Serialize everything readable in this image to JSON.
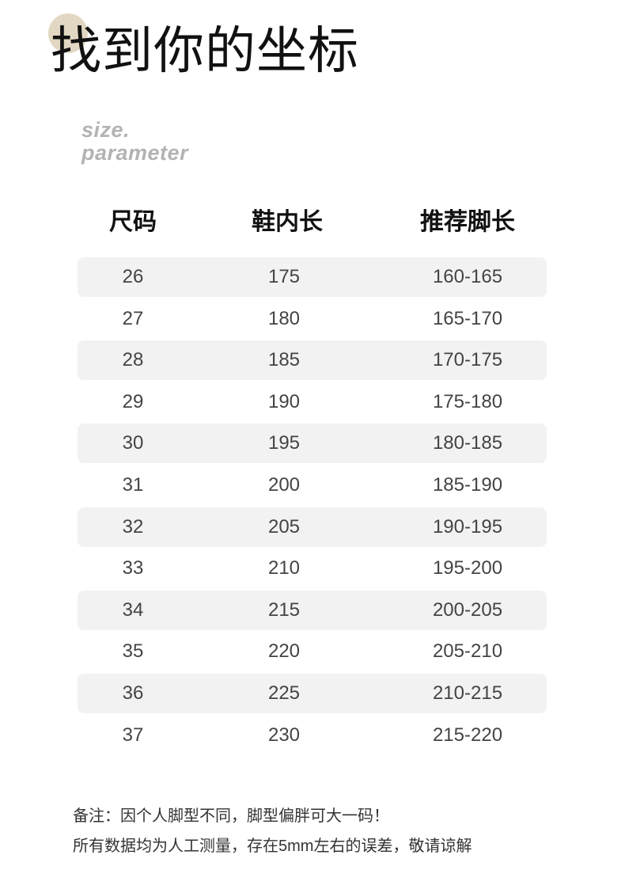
{
  "title": "找到你的坐标",
  "subtitle": {
    "line1": "size.",
    "line2": "parameter"
  },
  "accent_color": "#e2d7c3",
  "table": {
    "headers": [
      "尺码",
      "鞋内长",
      "推荐脚长"
    ],
    "rows": [
      [
        "26",
        "175",
        "160-165"
      ],
      [
        "27",
        "180",
        "165-170"
      ],
      [
        "28",
        "185",
        "170-175"
      ],
      [
        "29",
        "190",
        "175-180"
      ],
      [
        "30",
        "195",
        "180-185"
      ],
      [
        "31",
        "200",
        "185-190"
      ],
      [
        "32",
        "205",
        "190-195"
      ],
      [
        "33",
        "210",
        "195-200"
      ],
      [
        "34",
        "215",
        "200-205"
      ],
      [
        "35",
        "220",
        "205-210"
      ],
      [
        "36",
        "225",
        "210-215"
      ],
      [
        "37",
        "230",
        "215-220"
      ]
    ]
  },
  "notes": [
    "备注：因个人脚型不同，脚型偏胖可大一码！",
    "所有数据均为人工测量，存在5mm左右的误差，敬请谅解"
  ]
}
